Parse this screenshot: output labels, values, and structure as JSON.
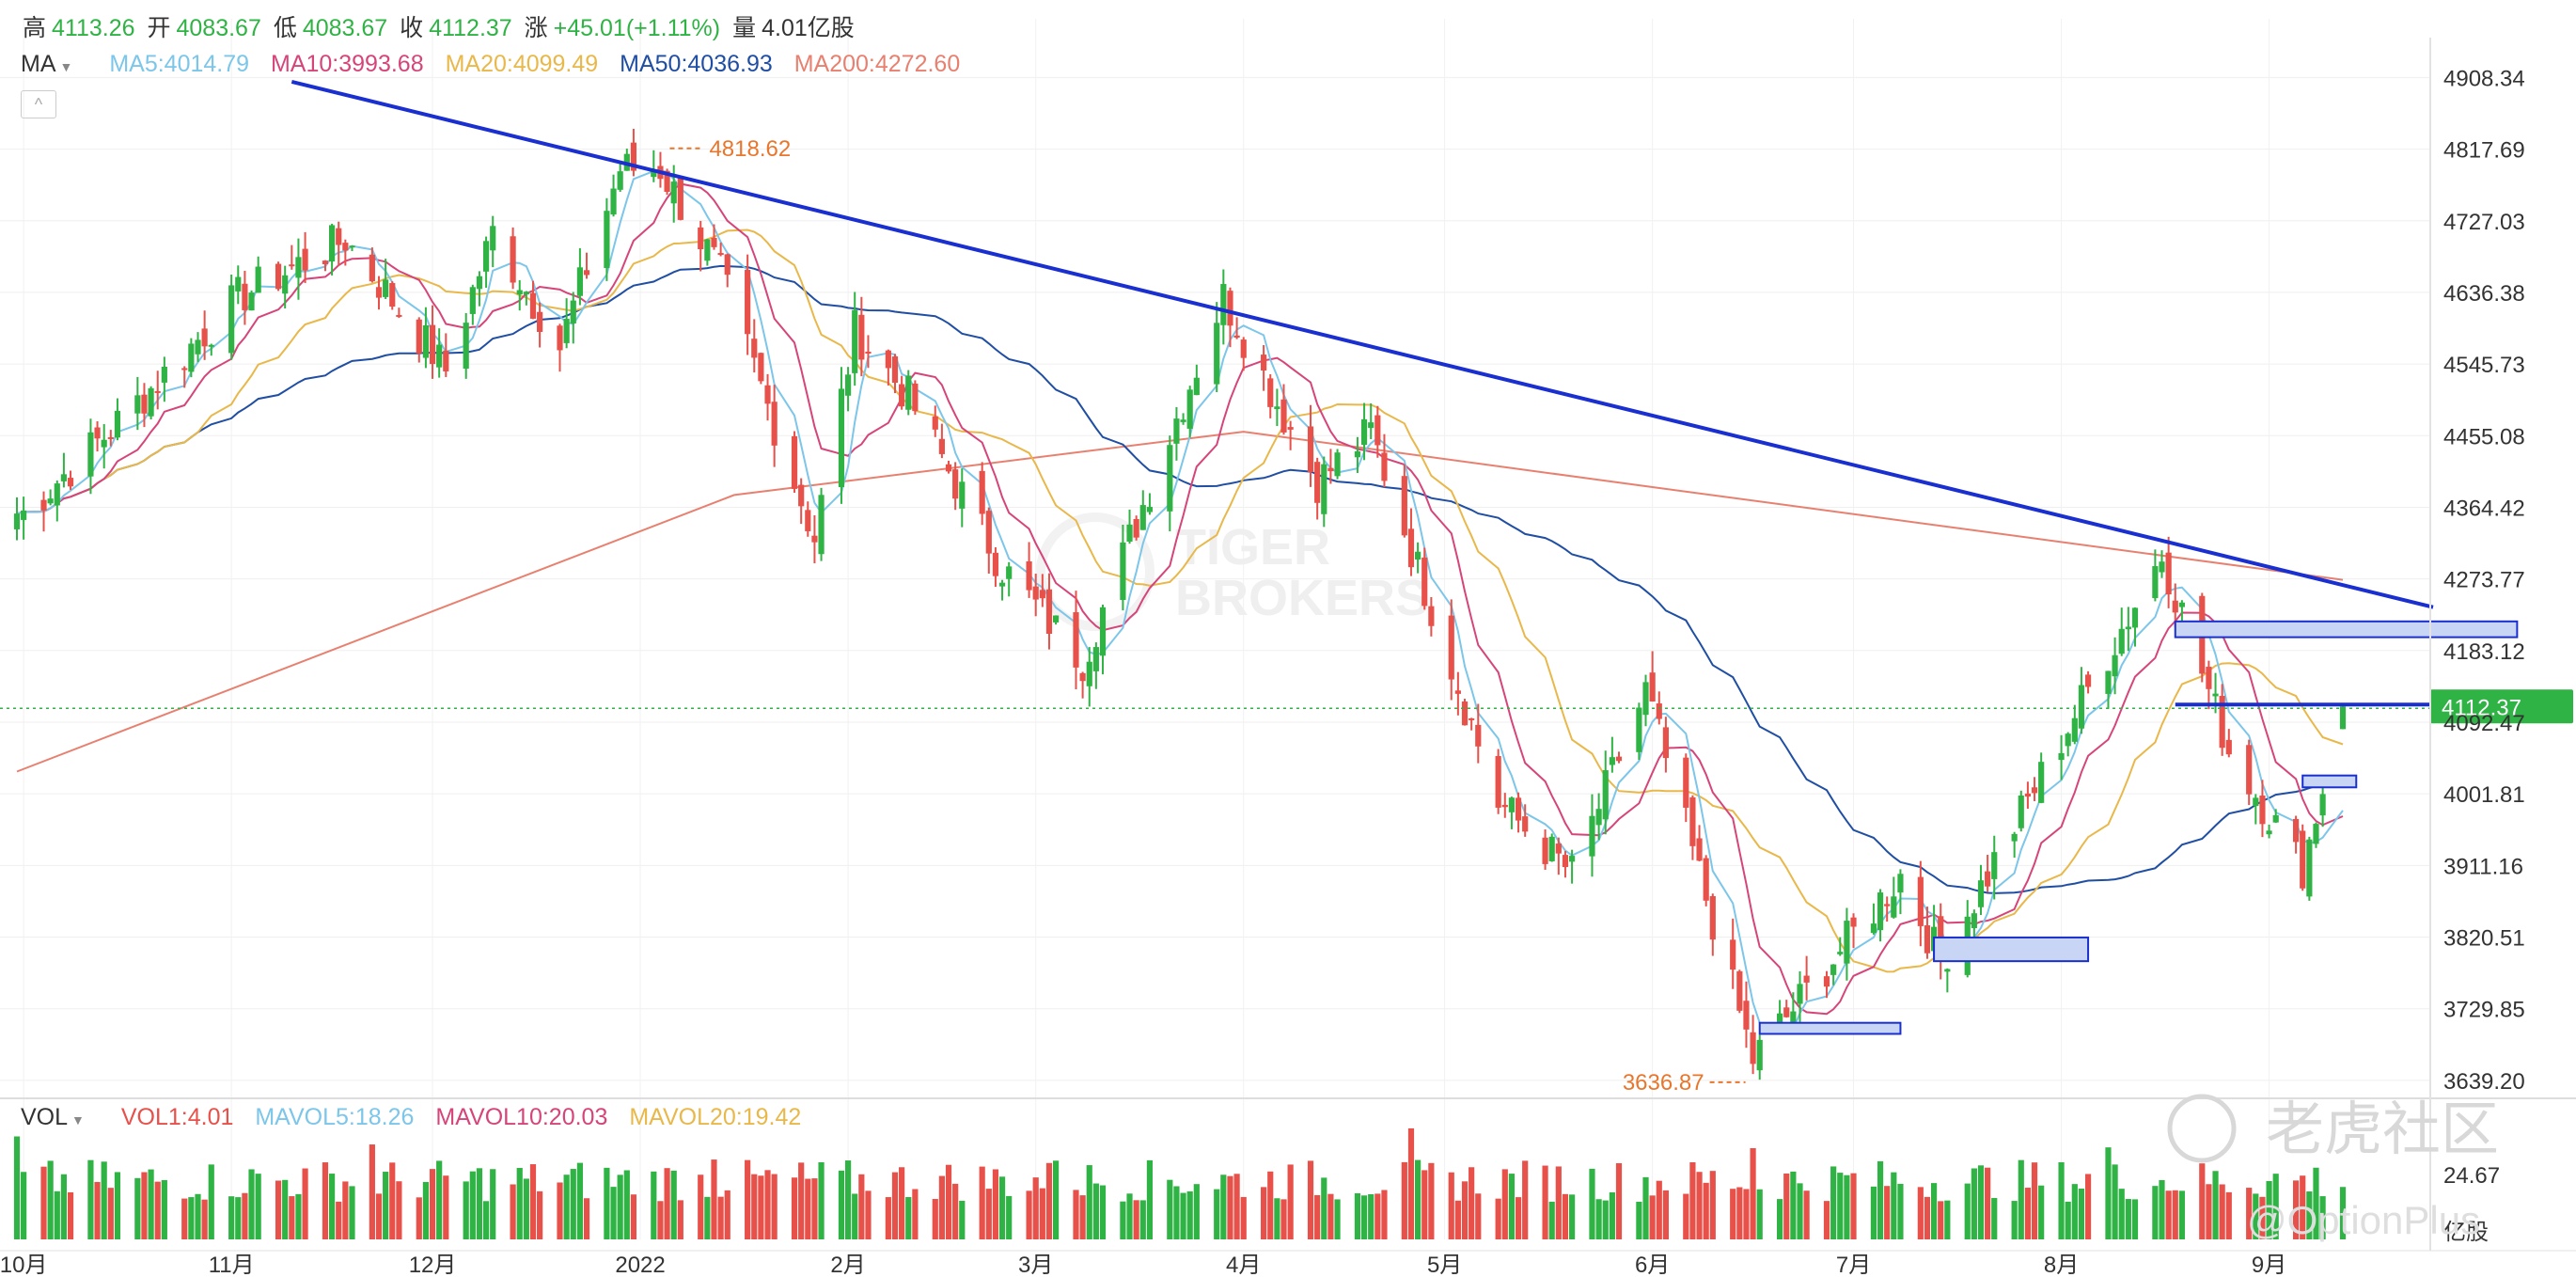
{
  "header": {
    "high_label": "高",
    "high": "4113.26",
    "open_label": "开",
    "open": "4083.67",
    "low_label": "低",
    "low": "4083.67",
    "close_label": "收",
    "close": "4112.37",
    "change_label": "涨",
    "change": "+45.01(+1.11%)",
    "volume_label": "量",
    "volume": "4.01亿股"
  },
  "indicators": {
    "selector": "MA",
    "ma5": "MA5:4014.79",
    "ma10": "MA10:3993.68",
    "ma20": "MA20:4099.49",
    "ma50": "MA50:4036.93",
    "ma200": "MA200:4272.60"
  },
  "volume_header": {
    "selector": "VOL",
    "vol1": "VOL1:4.01",
    "mavol5": "MAVOL5:18.26",
    "mavol10": "MAVOL10:20.03",
    "mavol20": "MAVOL20:19.42"
  },
  "colors": {
    "up": "#2fb344",
    "down": "#e8504a",
    "ma5": "#7cc6ea",
    "ma10": "#d6457a",
    "ma20": "#e9b84a",
    "ma50": "#1f4ea3",
    "ma200": "#e88070",
    "trend": "#1a2fd0",
    "box_fill": "#c9d5f5",
    "box_stroke": "#1a2fd0",
    "annot": "#e8762c"
  },
  "watermark": {
    "main": "TIGER",
    "sub": "BROKERS",
    "brand": "老虎社区",
    "handle": "@OptionPlus"
  },
  "chart_data": {
    "type": "candlestick",
    "y_axis_ticks": [
      "4908.34",
      "4817.69",
      "4727.03",
      "4636.38",
      "4545.73",
      "4455.08",
      "4364.42",
      "4273.77",
      "4183.12",
      "4092.47",
      "4001.81",
      "3911.16",
      "3820.51",
      "3729.85",
      "3639.20"
    ],
    "ylim": [
      3620,
      4935
    ],
    "x_axis_ticks": [
      "10月",
      "11月",
      "12月",
      "2022",
      "2月",
      "3月",
      "4月",
      "5月",
      "6月",
      "7月",
      "8月",
      "9月"
    ],
    "current_price_label": "4112.37",
    "high_annotation": "4818.62",
    "low_annotation": "3636.87",
    "volume_axis_label": "24.67",
    "volume_unit": "亿股",
    "approx_close_path": [
      [
        "2021-10-01",
        4357
      ],
      [
        "2021-10-15",
        4471
      ],
      [
        "2021-11-02",
        4630
      ],
      [
        "2021-11-18",
        4704
      ],
      [
        "2021-12-03",
        4538
      ],
      [
        "2021-12-10",
        4712
      ],
      [
        "2021-12-20",
        4568
      ],
      [
        "2021-12-29",
        4793
      ],
      [
        "2022-01-04",
        4793
      ],
      [
        "2022-01-13",
        4659
      ],
      [
        "2022-01-27",
        4326
      ],
      [
        "2022-02-02",
        4589
      ],
      [
        "2022-02-10",
        4504
      ],
      [
        "2022-02-24",
        4288
      ],
      [
        "2022-03-08",
        4170
      ],
      [
        "2022-03-29",
        4631
      ],
      [
        "2022-04-12",
        4397
      ],
      [
        "2022-04-20",
        4460
      ],
      [
        "2022-05-09",
        3991
      ],
      [
        "2022-05-20",
        3901
      ],
      [
        "2022-05-31",
        4132
      ],
      [
        "2022-06-16",
        3666
      ],
      [
        "2022-07-08",
        3899
      ],
      [
        "2022-07-14",
        3790
      ],
      [
        "2022-08-16",
        4305
      ],
      [
        "2022-08-26",
        4057
      ],
      [
        "2022-09-06",
        3908
      ],
      [
        "2022-09-12",
        4112
      ]
    ]
  }
}
